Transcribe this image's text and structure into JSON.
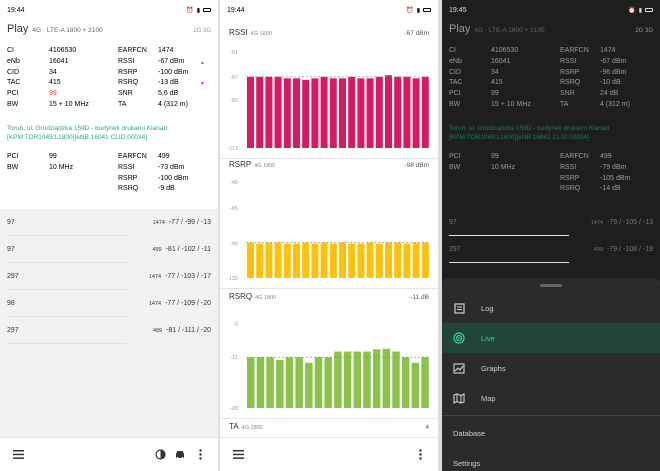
{
  "p1": {
    "status": {
      "time": "19:44"
    },
    "operator": "Play",
    "tech": "4G · LTE-A 1800 + 2100",
    "gen": "2G 3G",
    "serving": [
      {
        "l": "CI",
        "v": "4106530",
        "l2": "EARFCN",
        "v2": "1474"
      },
      {
        "l": "eNb",
        "v": "16041",
        "l2": "RSSI",
        "v2": "-67 dBm"
      },
      {
        "l": "CID",
        "v": "34",
        "l2": "RSRP",
        "v2": "-100 dBm"
      },
      {
        "l": "TAC",
        "v": "415",
        "l2": "RSRQ",
        "v2": "-13 dB"
      },
      {
        "l": "PCI",
        "v": "99",
        "l2": "SNR",
        "v2": "5,6 dB"
      },
      {
        "l": "BW",
        "v": "15 + 10 MHz",
        "l2": "TA",
        "v2": "4 (312 m)"
      }
    ],
    "location": "Toruń, ul. Grudziądzka 159D - budynek drukarni Klanad [KPM:TOR1045:L1800][eNB:16041 CLID:00034]",
    "secondary": [
      {
        "l": "PCI",
        "v": "99",
        "l2": "EARFCN",
        "v2": "499"
      },
      {
        "l": "BW",
        "v": "10 MHz",
        "l2": "RSSI",
        "v2": "-73 dBm"
      },
      {
        "l": "",
        "v": "",
        "l2": "RSRP",
        "v2": "-100 dBm"
      },
      {
        "l": "",
        "v": "",
        "l2": "RSRQ",
        "v2": "-9 dB"
      }
    ],
    "neighbours": [
      {
        "pci": "97",
        "earfcn": "1474",
        "vals": "-77 / -99 / -13"
      },
      {
        "pci": "97",
        "earfcn": "499",
        "vals": "-81 / -102 / -11"
      },
      {
        "pci": "297",
        "earfcn": "1474",
        "vals": "-77 / -103 / -17"
      },
      {
        "pci": "98",
        "earfcn": "1474",
        "vals": "-77 / -109 / -20"
      },
      {
        "pci": "297",
        "earfcn": "499",
        "vals": "-81 / -111 / -20"
      }
    ]
  },
  "p2": {
    "status": {
      "time": "19:44"
    },
    "charts": [
      {
        "name": "RSSI",
        "band": "4G 1800",
        "value": "-67 dBm",
        "color": "#d81b60",
        "ticks": [
          "-51",
          "-67",
          "-82",
          "-113"
        ],
        "ref": -67,
        "ymin": -113,
        "ymax": -51,
        "values": [
          -67,
          -67,
          -67,
          -67,
          -68,
          -68,
          -69,
          -68,
          -67,
          -68,
          -68,
          -67,
          -68,
          -68,
          -67,
          -66,
          -67,
          -67,
          -68,
          -67
        ]
      },
      {
        "name": "RSRP",
        "band": "4G 1800",
        "value": "-98 dBm",
        "color": "#ffc107",
        "ticks": [
          "-40",
          "-65",
          "-99",
          "-132"
        ],
        "ref": -98,
        "ymin": -132,
        "ymax": -40,
        "values": [
          -98,
          -99,
          -98,
          -98,
          -99,
          -99,
          -98,
          -99,
          -98,
          -99,
          -98,
          -99,
          -99,
          -98,
          -99,
          -98,
          -98,
          -99,
          -98,
          -98
        ]
      },
      {
        "name": "RSRQ",
        "band": "4G 1800",
        "value": "-11 dB",
        "color": "#8bc34a",
        "ticks": [
          "-20",
          "-11",
          "-5"
        ],
        "ref": -11,
        "ymin": -20,
        "ymax": -3,
        "values": [
          -11,
          -11,
          -11,
          -11.5,
          -11,
          -11,
          -12,
          -11,
          -11,
          -10,
          -10,
          -10,
          -10,
          -9.6,
          -9.5,
          -10,
          -11,
          -12,
          -11
        ]
      },
      {
        "name": "TA",
        "band": "4G 1800",
        "value": "4"
      }
    ]
  },
  "p3": {
    "status": {
      "time": "19:45"
    },
    "operator": "Play",
    "tech": "4G · LTE-A 1800 + 2100",
    "gen": "2G 3G",
    "serving": [
      {
        "l": "CI",
        "v": "4106530",
        "l2": "EARFCN",
        "v2": "1474"
      },
      {
        "l": "eNb",
        "v": "16041",
        "l2": "RSSI",
        "v2": "-67 dBm"
      },
      {
        "l": "CID",
        "v": "34",
        "l2": "RSRP",
        "v2": "-96 dBm"
      },
      {
        "l": "TAC",
        "v": "415",
        "l2": "RSRQ",
        "v2": "-10 dB"
      },
      {
        "l": "PCI",
        "v": "99",
        "l2": "SNR",
        "v2": "24 dB"
      },
      {
        "l": "BW",
        "v": "15 + 10 MHz",
        "l2": "TA",
        "v2": "4 (312 m)"
      }
    ],
    "location": "Toruń, ul. Grudziądzka 159D - budynek drukarni Klanad [KPM:TOR1045:L1800][eNB:16041 CLID:00034]",
    "secondary": [
      {
        "l": "PCI",
        "v": "99",
        "l2": "EARFCN",
        "v2": "499"
      },
      {
        "l": "BW",
        "v": "10 MHz",
        "l2": "RSSI",
        "v2": "-79 dBm"
      },
      {
        "l": "",
        "v": "",
        "l2": "RSRP",
        "v2": "-105 dBm"
      },
      {
        "l": "",
        "v": "",
        "l2": "RSRQ",
        "v2": "-14 dB"
      }
    ],
    "neighbours": [
      {
        "pci": "97",
        "earfcn": "1474",
        "vals": "-79 / -105 / -13"
      },
      {
        "pci": "297",
        "earfcn": "499",
        "vals": "-79 / -108 / -19"
      }
    ],
    "menu": [
      {
        "label": "Log",
        "icon": "list-icon"
      },
      {
        "label": "Live",
        "icon": "radar-icon"
      },
      {
        "label": "Graphs",
        "icon": "graph-icon"
      },
      {
        "label": "Map",
        "icon": "map-icon"
      }
    ],
    "menu_plain": [
      "Database",
      "Settings"
    ]
  }
}
